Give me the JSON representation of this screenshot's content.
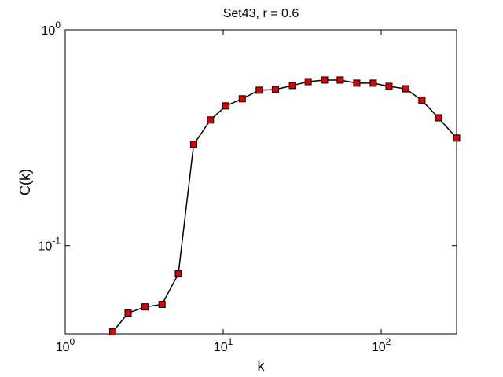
{
  "chart_data": {
    "type": "line",
    "title": "Set43, r = 0.6",
    "x_label": "k",
    "y_label": "C(k)",
    "x": [
      2,
      2.5,
      3.2,
      4.1,
      5.2,
      6.5,
      8.3,
      10.4,
      13.2,
      16.9,
      21.4,
      27.4,
      34.5,
      43.8,
      55,
      70,
      89,
      112,
      143,
      181,
      230,
      300
    ],
    "series": [
      {
        "name": "C(k)",
        "color": "#e00000",
        "values": [
          0.0398,
          0.0487,
          0.052,
          0.0534,
          0.074,
          0.294,
          0.382,
          0.444,
          0.479,
          0.525,
          0.529,
          0.552,
          0.575,
          0.585,
          0.585,
          0.566,
          0.566,
          0.547,
          0.533,
          0.471,
          0.391,
          0.315
        ]
      }
    ],
    "xlim": [
      1,
      300
    ],
    "ylim": [
      0.039,
      1
    ],
    "x_log": true,
    "y_log": true,
    "xticks": [
      {
        "value": 1,
        "label": "10^0"
      },
      {
        "value": 10,
        "label": "10^1"
      },
      {
        "value": 100,
        "label": "10^2"
      }
    ],
    "yticks": [
      {
        "value": 0.1,
        "label": "10^-1"
      },
      {
        "value": 1,
        "label": "10^0"
      }
    ]
  }
}
